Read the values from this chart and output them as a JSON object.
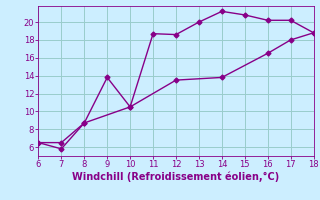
{
  "xlabel": "Windchill (Refroidissement éolien,°C)",
  "line1_x": [
    6,
    7,
    8,
    9,
    10,
    11,
    12,
    13,
    14,
    15,
    16,
    17,
    18
  ],
  "line1_y": [
    6.5,
    5.8,
    8.7,
    13.8,
    10.5,
    18.7,
    18.6,
    20.0,
    21.2,
    20.8,
    20.2,
    20.2,
    18.8
  ],
  "line2_x": [
    6,
    7,
    8,
    10,
    12,
    14,
    16,
    17,
    18
  ],
  "line2_y": [
    6.5,
    6.5,
    8.7,
    10.5,
    13.5,
    13.8,
    16.5,
    18.0,
    18.8
  ],
  "color": "#880088",
  "bg_color": "#cceeff",
  "grid_color": "#99cccc",
  "xlim": [
    6,
    18
  ],
  "ylim": [
    5,
    21.8
  ],
  "xticks": [
    6,
    7,
    8,
    9,
    10,
    11,
    12,
    13,
    14,
    15,
    16,
    17,
    18
  ],
  "yticks": [
    6,
    8,
    10,
    12,
    14,
    16,
    18,
    20
  ],
  "marker": "D",
  "markersize": 2.5,
  "linewidth": 1.0,
  "tick_fontsize": 6,
  "label_fontsize": 7
}
